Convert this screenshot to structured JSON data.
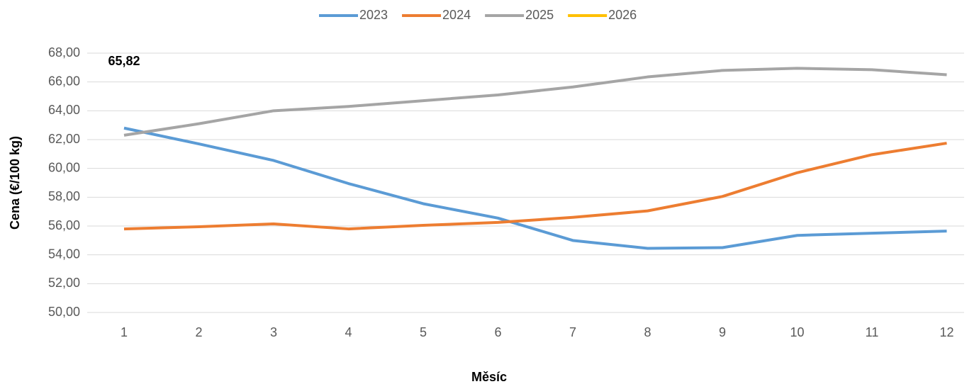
{
  "chart_data": {
    "type": "line",
    "x_label": "Měsíc",
    "y_label": "Cena (€/100 kg)",
    "categories": [
      "1",
      "2",
      "3",
      "4",
      "5",
      "6",
      "7",
      "8",
      "9",
      "10",
      "11",
      "12"
    ],
    "series": [
      {
        "name": "2023",
        "color": "#5b9bd5",
        "values": [
          62.8,
          61.7,
          60.55,
          58.95,
          57.55,
          56.55,
          55.0,
          54.45,
          54.5,
          55.35,
          55.5,
          55.65
        ]
      },
      {
        "name": "2024",
        "color": "#ed7d31",
        "values": [
          55.8,
          55.95,
          56.15,
          55.8,
          56.05,
          56.25,
          56.6,
          57.05,
          58.05,
          59.7,
          60.95,
          61.75
        ]
      },
      {
        "name": "2025",
        "color": "#a5a5a5",
        "values": [
          62.3,
          63.1,
          64.0,
          64.3,
          64.7,
          65.1,
          65.65,
          66.35,
          66.8,
          66.95,
          66.85,
          66.5
        ]
      },
      {
        "name": "2026",
        "color": "#ffc000",
        "values": [
          65.82,
          null,
          null,
          null,
          null,
          null,
          null,
          null,
          null,
          null,
          null,
          null
        ],
        "value_labels": [
          "65,82",
          null,
          null,
          null,
          null,
          null,
          null,
          null,
          null,
          null,
          null,
          null
        ]
      }
    ],
    "ylim": [
      50,
      68
    ],
    "yticks": [
      {
        "value": 50,
        "label": "50,00"
      },
      {
        "value": 52,
        "label": "52,00"
      },
      {
        "value": 54,
        "label": "54,00"
      },
      {
        "value": 56,
        "label": "56,00"
      },
      {
        "value": 58,
        "label": "58,00"
      },
      {
        "value": 60,
        "label": "60,00"
      },
      {
        "value": 62,
        "label": "62,00"
      },
      {
        "value": 64,
        "label": "64,00"
      },
      {
        "value": 66,
        "label": "66,00"
      },
      {
        "value": 68,
        "label": "68,00"
      }
    ],
    "grid": true,
    "legend": "top"
  }
}
